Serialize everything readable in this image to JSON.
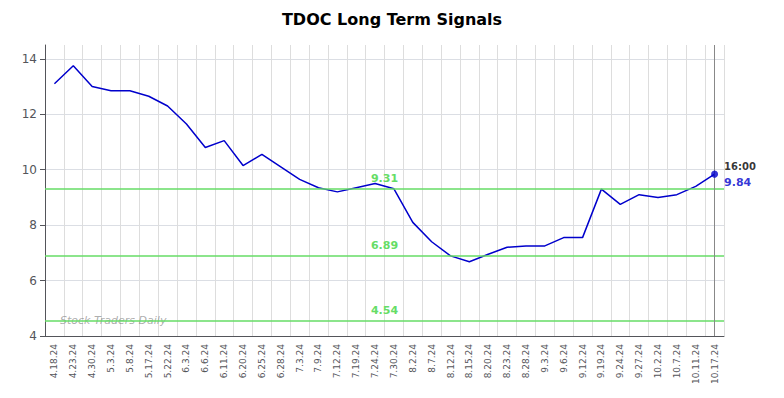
{
  "chart_data": {
    "type": "line",
    "title": "TDOC Long Term Signals",
    "categories": [
      "4.18.24",
      "4.23.24",
      "4.30.24",
      "5.3.24",
      "5.8.24",
      "5.17.24",
      "5.22.24",
      "6.3.24",
      "6.6.24",
      "6.11.24",
      "6.20.24",
      "6.25.24",
      "6.28.24",
      "7.3.24",
      "7.9.24",
      "7.12.24",
      "7.19.24",
      "7.24.24",
      "7.30.24",
      "8.2.24",
      "8.7.24",
      "8.12.24",
      "8.15.24",
      "8.20.24",
      "8.23.24",
      "8.28.24",
      "9.3.24",
      "9.6.24",
      "9.12.24",
      "9.19.24",
      "9.24.24",
      "9.27.24",
      "10.2.24",
      "10.7.24",
      "10.11.24",
      "10.17.24"
    ],
    "values": [
      13.1,
      13.75,
      13.0,
      12.85,
      12.85,
      12.65,
      12.3,
      11.65,
      10.8,
      11.05,
      10.15,
      10.55,
      10.1,
      9.65,
      9.35,
      9.2,
      9.35,
      9.5,
      9.31,
      8.1,
      7.4,
      6.89,
      6.68,
      6.95,
      7.2,
      7.25,
      7.25,
      7.55,
      7.55,
      9.3,
      8.75,
      9.1,
      9.0,
      9.1,
      9.4,
      9.84
    ],
    "color": "#0000cc",
    "hlines": {
      "values": [
        9.31,
        6.89,
        4.54
      ],
      "color": "#66dd66"
    },
    "last_time_label": "16:00",
    "last_price": 9.84,
    "watermark": "Stock Traders Daily",
    "ylim": [
      4.0,
      14.5
    ],
    "yticks": [
      4,
      6,
      8,
      10,
      12,
      14
    ],
    "grid": true
  }
}
